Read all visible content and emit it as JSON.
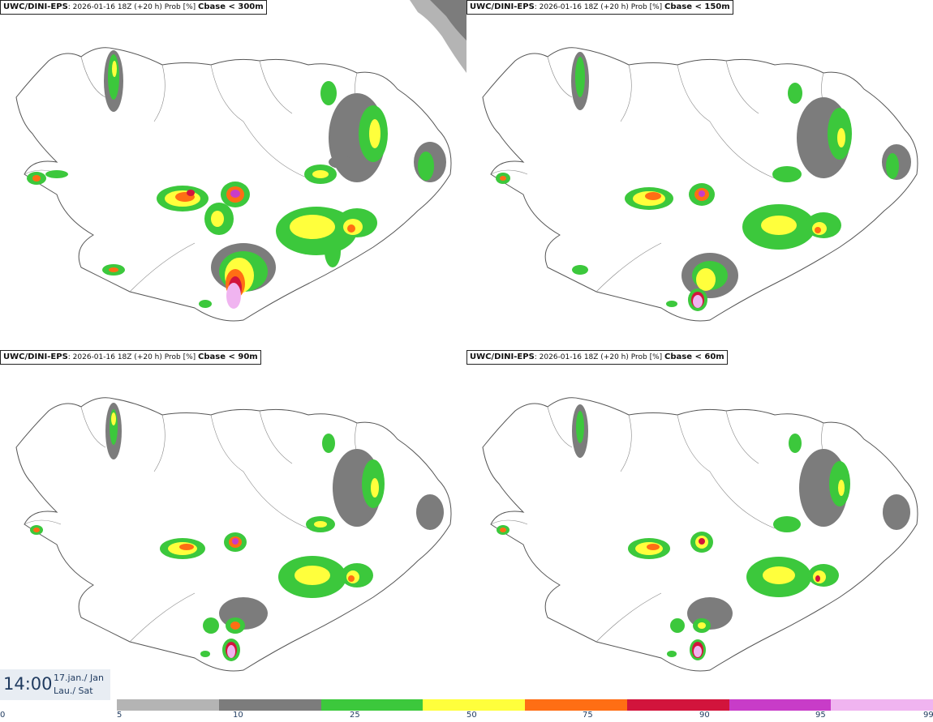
{
  "panels": [
    {
      "source": "UWC/DINI-EPS",
      "run": ": 2026-01-16 18Z (+20 h) Prob [%]",
      "variable": "Cbase < 300m"
    },
    {
      "source": "UWC/DINI-EPS",
      "run": ": 2026-01-16 18Z (+20 h) Prob [%]",
      "variable": "Cbase < 150m"
    },
    {
      "source": "UWC/DINI-EPS",
      "run": ": 2026-01-16 18Z (+20 h) Prob [%]",
      "variable": "Cbase < 90m"
    },
    {
      "source": "UWC/DINI-EPS",
      "run": ": 2026-01-16 18Z (+20 h) Prob [%]",
      "variable": "Cbase < 60m"
    }
  ],
  "valid_time": {
    "time": "14:00",
    "date_line": "17.jan./ Jan",
    "day_line": "Lau./ Sat"
  },
  "colorbar": {
    "ticks": [
      "0",
      "5",
      "10",
      "25",
      "50",
      "75",
      "90",
      "95",
      "99"
    ],
    "colors": [
      "#ffffff",
      "#b4b4b4",
      "#7c7c7c",
      "#3cc83c",
      "#ffff3c",
      "#ff6e14",
      "#d2143c",
      "#c83cc8",
      "#f0b4f0"
    ]
  },
  "legend_classes": {
    "p5": "#b4b4b4",
    "p10": "#7c7c7c",
    "p25": "#3cc83c",
    "p50": "#ffff3c",
    "p75": "#ff6e14",
    "p90": "#d2143c",
    "p95": "#c83cc8",
    "p99": "#f0b4f0"
  }
}
